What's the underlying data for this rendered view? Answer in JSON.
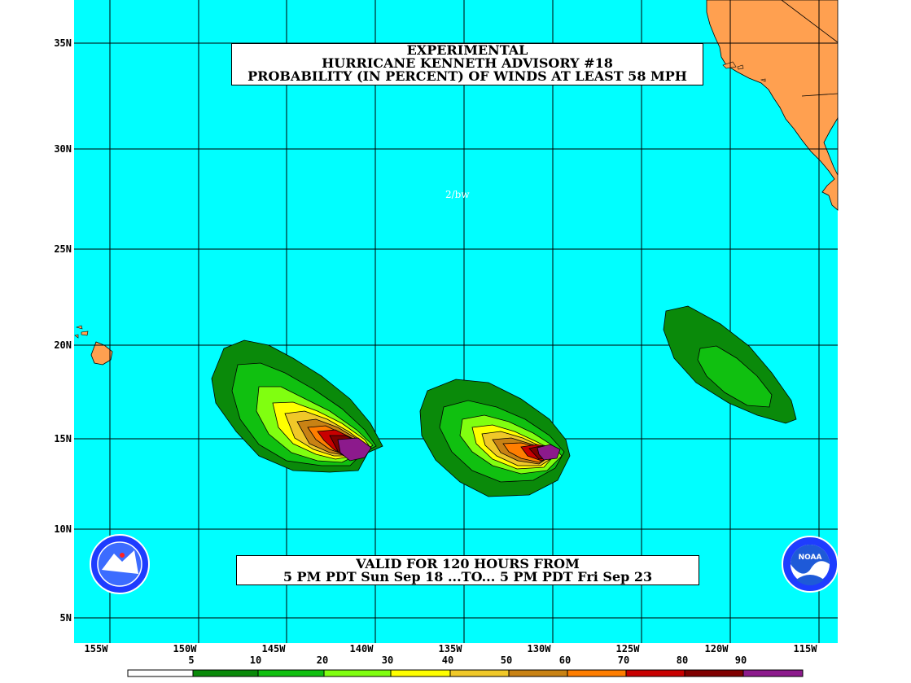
{
  "title": {
    "line1": "EXPERIMENTAL",
    "line2": "HURRICANE KENNETH ADVISORY #18",
    "line3": "PROBABILITY (IN PERCENT) OF WINDS AT LEAST 58 MPH"
  },
  "valid": {
    "line1": "VALID FOR 120 HOURS FROM",
    "line2": "5 PM PDT Sun Sep 18 ...TO... 5 PM PDT Fri Sep 23"
  },
  "tag": "2/bw",
  "lat_labels": [
    "35N",
    "30N",
    "25N",
    "20N",
    "15N",
    "10N",
    "5N"
  ],
  "lon_labels": [
    "155W",
    "150W",
    "145W",
    "140W",
    "135W",
    "130W",
    "125W",
    "120W",
    "115W"
  ],
  "legend": {
    "values": [
      "5",
      "10",
      "20",
      "30",
      "40",
      "50",
      "60",
      "70",
      "80",
      "90"
    ],
    "colors": [
      "#ffffff",
      "#0a8a0a",
      "#10c010",
      "#80ff10",
      "#ffff00",
      "#f0c828",
      "#c88214",
      "#ff7e00",
      "#c80000",
      "#800000",
      "#8c1a8c"
    ]
  },
  "colors": {
    "ocean": "#00ffff",
    "land": "#ffa050",
    "grid": "#000000"
  },
  "icons": [
    "nws-logo-icon",
    "noaa-logo-icon"
  ]
}
